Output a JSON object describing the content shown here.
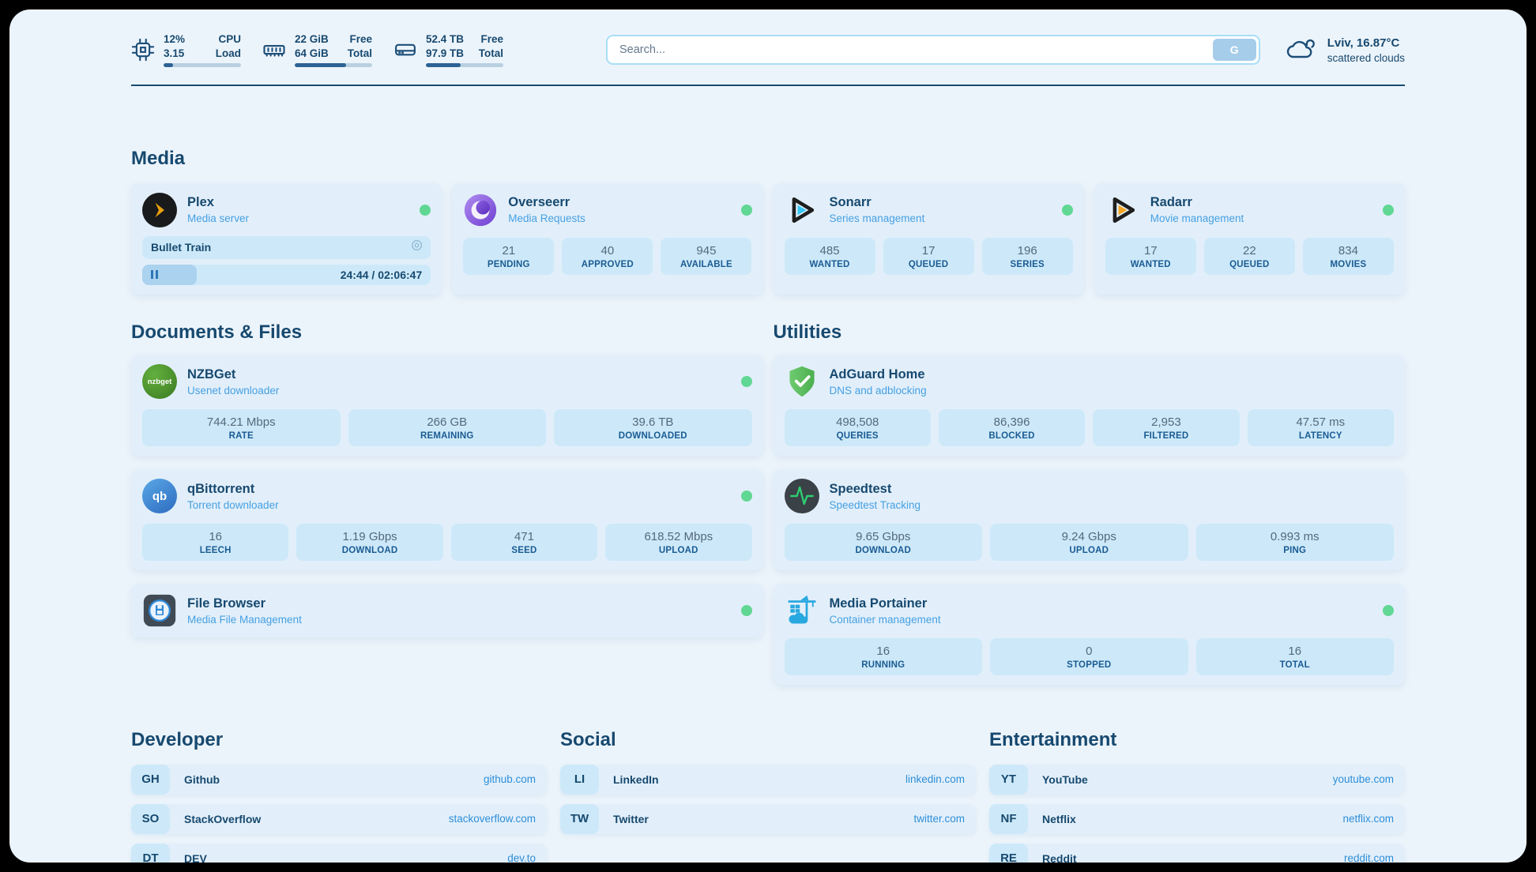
{
  "colors": {
    "page-bg": "#ecf4fb",
    "card-bg": "#e2effa",
    "stat-bg": "#cde9f9",
    "navy": "#17496f",
    "desc-blue": "#46a0e2",
    "url-blue": "#2e8ed8",
    "status-green": "#61d794",
    "value-slate": "#54687c",
    "label-blue": "#1a5b93",
    "bar-track": "#b9d0e0",
    "bar-fill": "#2d6394",
    "search-border": "#a8def6",
    "accent-soft": "#a6cdea",
    "np-fill": "#abd2ee",
    "pause-blue": "#2e77b5"
  },
  "topbar": {
    "cpu": {
      "icon": "cpu-icon",
      "v1": "12%",
      "l1": "CPU",
      "v2": "3.15",
      "l2": "Load",
      "progress": 12
    },
    "ram": {
      "icon": "ram-icon",
      "v1": "22 GiB",
      "l1": "Free",
      "v2": "64 GiB",
      "l2": "Total",
      "progress": 66
    },
    "disk": {
      "icon": "disk-icon",
      "v1": "52.4 TB",
      "l1": "Free",
      "v2": "97.9 TB",
      "l2": "Total",
      "progress": 45
    },
    "search": {
      "placeholder": "Search...",
      "button_label": "G"
    },
    "weather": {
      "icon": "cloud-icon",
      "location": "Lviv, 16.87°C",
      "condition": "scattered clouds"
    }
  },
  "sections": {
    "media": {
      "title": "Media"
    },
    "documents": {
      "title": "Documents & Files"
    },
    "utilities": {
      "title": "Utilities"
    },
    "developer": {
      "title": "Developer"
    },
    "social": {
      "title": "Social"
    },
    "entertainment": {
      "title": "Entertainment"
    }
  },
  "services": {
    "plex": {
      "icon": "plex-icon",
      "name": "Plex",
      "desc": "Media server",
      "status": "online",
      "now_playing": {
        "title": "Bullet Train",
        "time": "24:44 / 02:06:47",
        "progress": 19
      }
    },
    "overseerr": {
      "icon": "overseerr-icon",
      "name": "Overseerr",
      "desc": "Media Requests",
      "status": "online",
      "stats": [
        {
          "value": "21",
          "label": "PENDING"
        },
        {
          "value": "40",
          "label": "APPROVED"
        },
        {
          "value": "945",
          "label": "AVAILABLE"
        }
      ]
    },
    "sonarr": {
      "icon": "sonarr-icon",
      "name": "Sonarr",
      "desc": "Series management",
      "status": "online",
      "stats": [
        {
          "value": "485",
          "label": "WANTED"
        },
        {
          "value": "17",
          "label": "QUEUED"
        },
        {
          "value": "196",
          "label": "SERIES"
        }
      ]
    },
    "radarr": {
      "icon": "radarr-icon",
      "name": "Radarr",
      "desc": "Movie management",
      "status": "online",
      "stats": [
        {
          "value": "17",
          "label": "WANTED"
        },
        {
          "value": "22",
          "label": "QUEUED"
        },
        {
          "value": "834",
          "label": "MOVIES"
        }
      ]
    },
    "nzbget": {
      "icon": "nzbget-icon",
      "icon_text": "nzbget",
      "name": "NZBGet",
      "desc": "Usenet downloader",
      "status": "online",
      "stats": [
        {
          "value": "744.21 Mbps",
          "label": "RATE"
        },
        {
          "value": "266 GB",
          "label": "REMAINING"
        },
        {
          "value": "39.6 TB",
          "label": "DOWNLOADED"
        }
      ]
    },
    "qbittorrent": {
      "icon": "qbittorrent-icon",
      "icon_text": "qb",
      "name": "qBittorrent",
      "desc": "Torrent downloader",
      "status": "online",
      "stats": [
        {
          "value": "16",
          "label": "LEECH"
        },
        {
          "value": "1.19 Gbps",
          "label": "DOWNLOAD"
        },
        {
          "value": "471",
          "label": "SEED"
        },
        {
          "value": "618.52 Mbps",
          "label": "UPLOAD"
        }
      ]
    },
    "filebrowser": {
      "icon": "filebrowser-icon",
      "name": "File Browser",
      "desc": "Media File Management",
      "status": "online"
    },
    "adguard": {
      "icon": "adguard-icon",
      "name": "AdGuard Home",
      "desc": "DNS and adblocking",
      "stats": [
        {
          "value": "498,508",
          "label": "QUERIES"
        },
        {
          "value": "86,396",
          "label": "BLOCKED"
        },
        {
          "value": "2,953",
          "label": "FILTERED"
        },
        {
          "value": "47.57 ms",
          "label": "LATENCY"
        }
      ]
    },
    "speedtest": {
      "icon": "speedtest-icon",
      "name": "Speedtest",
      "desc": "Speedtest Tracking",
      "stats": [
        {
          "value": "9.65 Gbps",
          "label": "DOWNLOAD"
        },
        {
          "value": "9.24 Gbps",
          "label": "UPLOAD"
        },
        {
          "value": "0.993 ms",
          "label": "PING"
        }
      ]
    },
    "portainer": {
      "icon": "portainer-icon",
      "name": "Media Portainer",
      "desc": "Container management",
      "status": "online",
      "stats": [
        {
          "value": "16",
          "label": "RUNNING"
        },
        {
          "value": "0",
          "label": "STOPPED"
        },
        {
          "value": "16",
          "label": "TOTAL"
        }
      ]
    }
  },
  "bookmarks": {
    "developer": [
      {
        "abbr": "GH",
        "name": "Github",
        "url": "github.com"
      },
      {
        "abbr": "SO",
        "name": "StackOverflow",
        "url": "stackoverflow.com"
      },
      {
        "abbr": "DT",
        "name": "DEV",
        "url": "dev.to"
      }
    ],
    "social": [
      {
        "abbr": "LI",
        "name": "LinkedIn",
        "url": "linkedin.com"
      },
      {
        "abbr": "TW",
        "name": "Twitter",
        "url": "twitter.com"
      }
    ],
    "entertainment": [
      {
        "abbr": "YT",
        "name": "YouTube",
        "url": "youtube.com"
      },
      {
        "abbr": "NF",
        "name": "Netflix",
        "url": "netflix.com"
      },
      {
        "abbr": "RE",
        "name": "Reddit",
        "url": "reddit.com"
      }
    ]
  }
}
